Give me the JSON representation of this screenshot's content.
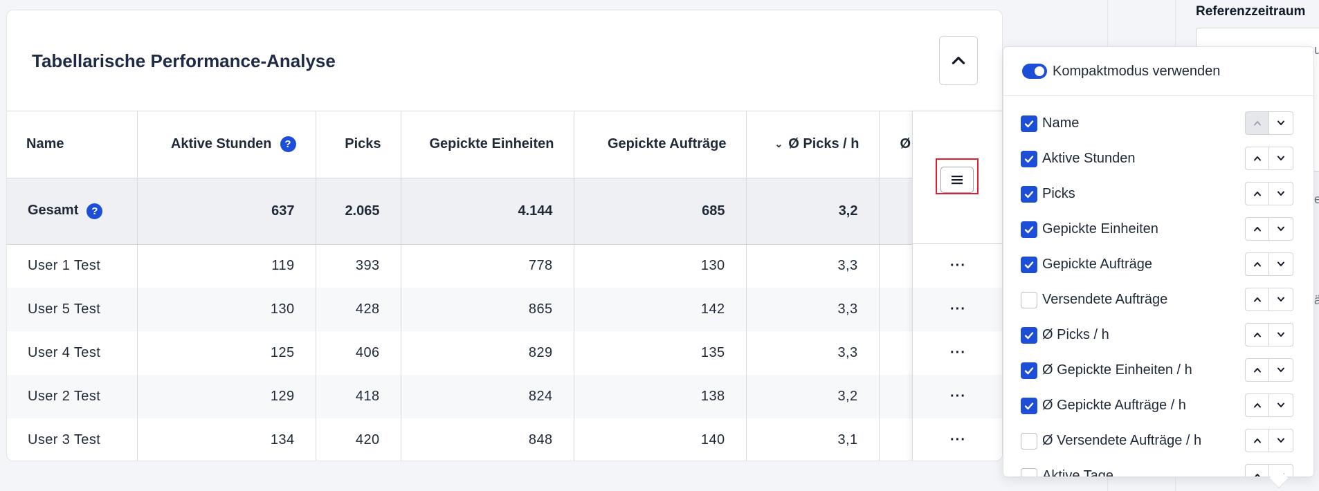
{
  "background": {
    "ref_title": "Referenzzeitraum",
    "ref_glyph_1": "u",
    "ref_glyph_2": "e",
    "ref_glyph_3": "ä"
  },
  "card": {
    "title": "Tabellarische Performance-Analyse"
  },
  "table": {
    "headers": {
      "name": "Name",
      "active_hours": "Aktive Stunden",
      "picks": "Picks",
      "picked_units": "Gepickte Einheiten",
      "picked_orders": "Gepickte Aufträge",
      "avg_picks_h": "Ø Picks / h",
      "partial": "Ø"
    },
    "help_glyph": "?",
    "sort_glyph": "⌄",
    "total": {
      "label": "Gesamt",
      "active_hours": "637",
      "picks": "2.065",
      "picked_units": "4.144",
      "picked_orders": "685",
      "avg_picks_h": "3,2"
    },
    "rows": [
      {
        "name": "User 1 Test",
        "active_hours": "119",
        "picks": "393",
        "picked_units": "778",
        "picked_orders": "130",
        "avg_picks_h": "3,3"
      },
      {
        "name": "User 5 Test",
        "active_hours": "130",
        "picks": "428",
        "picked_units": "865",
        "picked_orders": "142",
        "avg_picks_h": "3,3"
      },
      {
        "name": "User 4 Test",
        "active_hours": "125",
        "picks": "406",
        "picked_units": "829",
        "picked_orders": "135",
        "avg_picks_h": "3,3"
      },
      {
        "name": "User 2 Test",
        "active_hours": "129",
        "picks": "418",
        "picked_units": "824",
        "picked_orders": "138",
        "avg_picks_h": "3,2"
      },
      {
        "name": "User 3 Test",
        "active_hours": "134",
        "picks": "420",
        "picked_units": "848",
        "picked_orders": "140",
        "avg_picks_h": "3,1"
      }
    ],
    "row_action_glyph": "···"
  },
  "popover": {
    "compact_label": "Kompaktmodus verwenden",
    "compact_on": true,
    "columns": [
      {
        "label": "Name",
        "checked": true
      },
      {
        "label": "Aktive Stunden",
        "checked": true
      },
      {
        "label": "Picks",
        "checked": true
      },
      {
        "label": "Gepickte Einheiten",
        "checked": true
      },
      {
        "label": "Gepickte Aufträge",
        "checked": true
      },
      {
        "label": "Versendete Aufträge",
        "checked": false
      },
      {
        "label": "Ø Picks / h",
        "checked": true
      },
      {
        "label": "Ø Gepickte Einheiten / h",
        "checked": true
      },
      {
        "label": "Ø Gepickte Aufträge / h",
        "checked": true
      },
      {
        "label": "Ø Versendete Aufträge / h",
        "checked": false
      },
      {
        "label": "Aktive Tage",
        "checked": false
      }
    ]
  },
  "colors": {
    "accent": "#1d4ed8",
    "highlight": "#e11d2e"
  }
}
